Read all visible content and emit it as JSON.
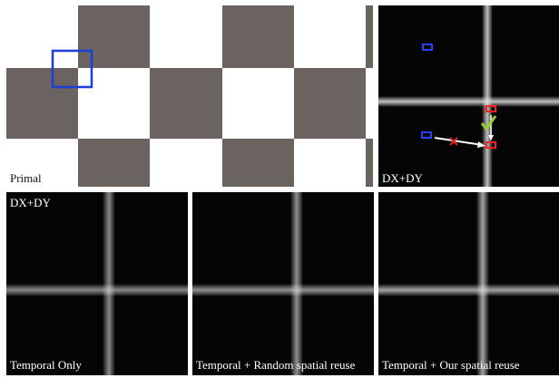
{
  "panels": [
    {
      "label": "Primal"
    },
    {
      "label": "DX+DY"
    },
    {
      "label": "Temporal Only",
      "tag": "DX+DY"
    },
    {
      "label": "Temporal + Random spatial reuse"
    },
    {
      "label": "Temporal + Our spatial reuse"
    }
  ]
}
